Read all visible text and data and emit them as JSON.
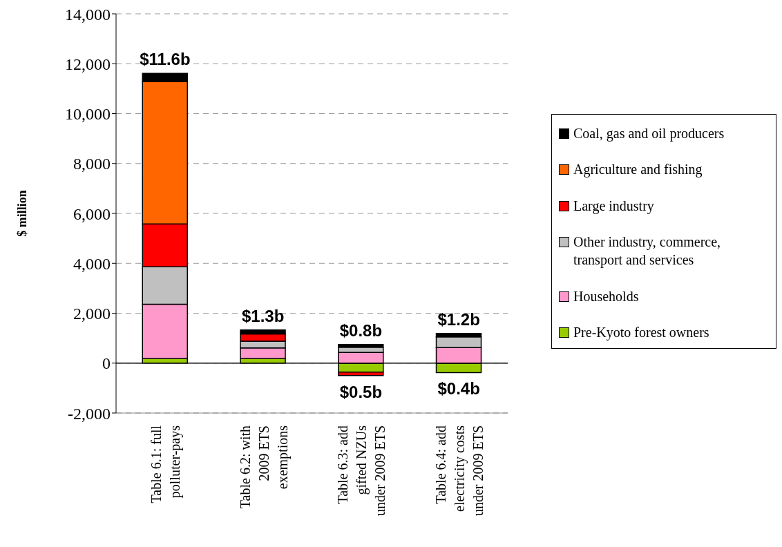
{
  "chart_data": {
    "type": "bar",
    "stacked": true,
    "ylabel": "$ million",
    "categories": [
      "Table 6.1: full\npolluter-pays",
      "Table 6.2: with\n2009 ETS\nexemptions",
      "Table 6.3: add\ngifted NZUs\nunder 2009 ETS",
      "Table 6.4: add\nelectricity costs\nunder 2009 ETS"
    ],
    "series": [
      {
        "name": "Pre-Kyoto forest owners",
        "color": "#99cc00",
        "values": [
          180,
          180,
          -360,
          -380
        ]
      },
      {
        "name": "Households",
        "color": "#ff99cc",
        "values": [
          2180,
          430,
          430,
          620
        ]
      },
      {
        "name": "Other industry, commerce, transport and services",
        "color": "#c0c0c0",
        "values": [
          1500,
          270,
          210,
          430
        ]
      },
      {
        "name": "Large industry",
        "color": "#ff0000",
        "values": [
          1720,
          290,
          -140,
          0
        ]
      },
      {
        "name": "Agriculture and fishing",
        "color": "#ff6600",
        "values": [
          5700,
          0,
          0,
          0
        ]
      },
      {
        "name": "Coal, gas and oil producers",
        "color": "#000000",
        "values": [
          330,
          160,
          110,
          140
        ]
      }
    ],
    "annotations": [
      {
        "text": "$11.6b",
        "x": "Table 6.1: full\npolluter-pays",
        "y": 11610
      },
      {
        "text": "$1.3b",
        "x": "Table 6.2: with\n2009 ETS\nexemptions",
        "y": 1330
      },
      {
        "text": "$0.8b",
        "x": "Table 6.3: add\ngifted NZUs\nunder 2009 ETS",
        "y": 750
      },
      {
        "text": "$1.2b",
        "x": "Table 6.4: add\nelectricity costs\nunder 2009 ETS",
        "y": 1190
      },
      {
        "text": "$0.5b",
        "x": "Table 6.3: add\ngifted NZUs\nunder 2009 ETS",
        "y": -500
      },
      {
        "text": "$0.4b",
        "x": "Table 6.4: add\nelectricity costs\nunder 2009 ETS",
        "y": -380
      }
    ],
    "ref_lines": [
      {
        "axis": "y",
        "value": 0,
        "color": "#000000"
      }
    ],
    "ylim": [
      -2000,
      14000
    ],
    "yticks": [
      {
        "value": -2000,
        "label": "-2,000"
      },
      0,
      {
        "value": 2000,
        "label": "2,000"
      },
      {
        "value": 4000,
        "label": "4,000"
      },
      {
        "value": 6000,
        "label": "6,000"
      },
      {
        "value": 8000,
        "label": "8,000"
      },
      {
        "value": 10000,
        "label": "10,000"
      },
      {
        "value": 12000,
        "label": "12,000"
      },
      {
        "value": 14000,
        "label": "14,000"
      }
    ],
    "grid": "y",
    "legend": "right"
  }
}
